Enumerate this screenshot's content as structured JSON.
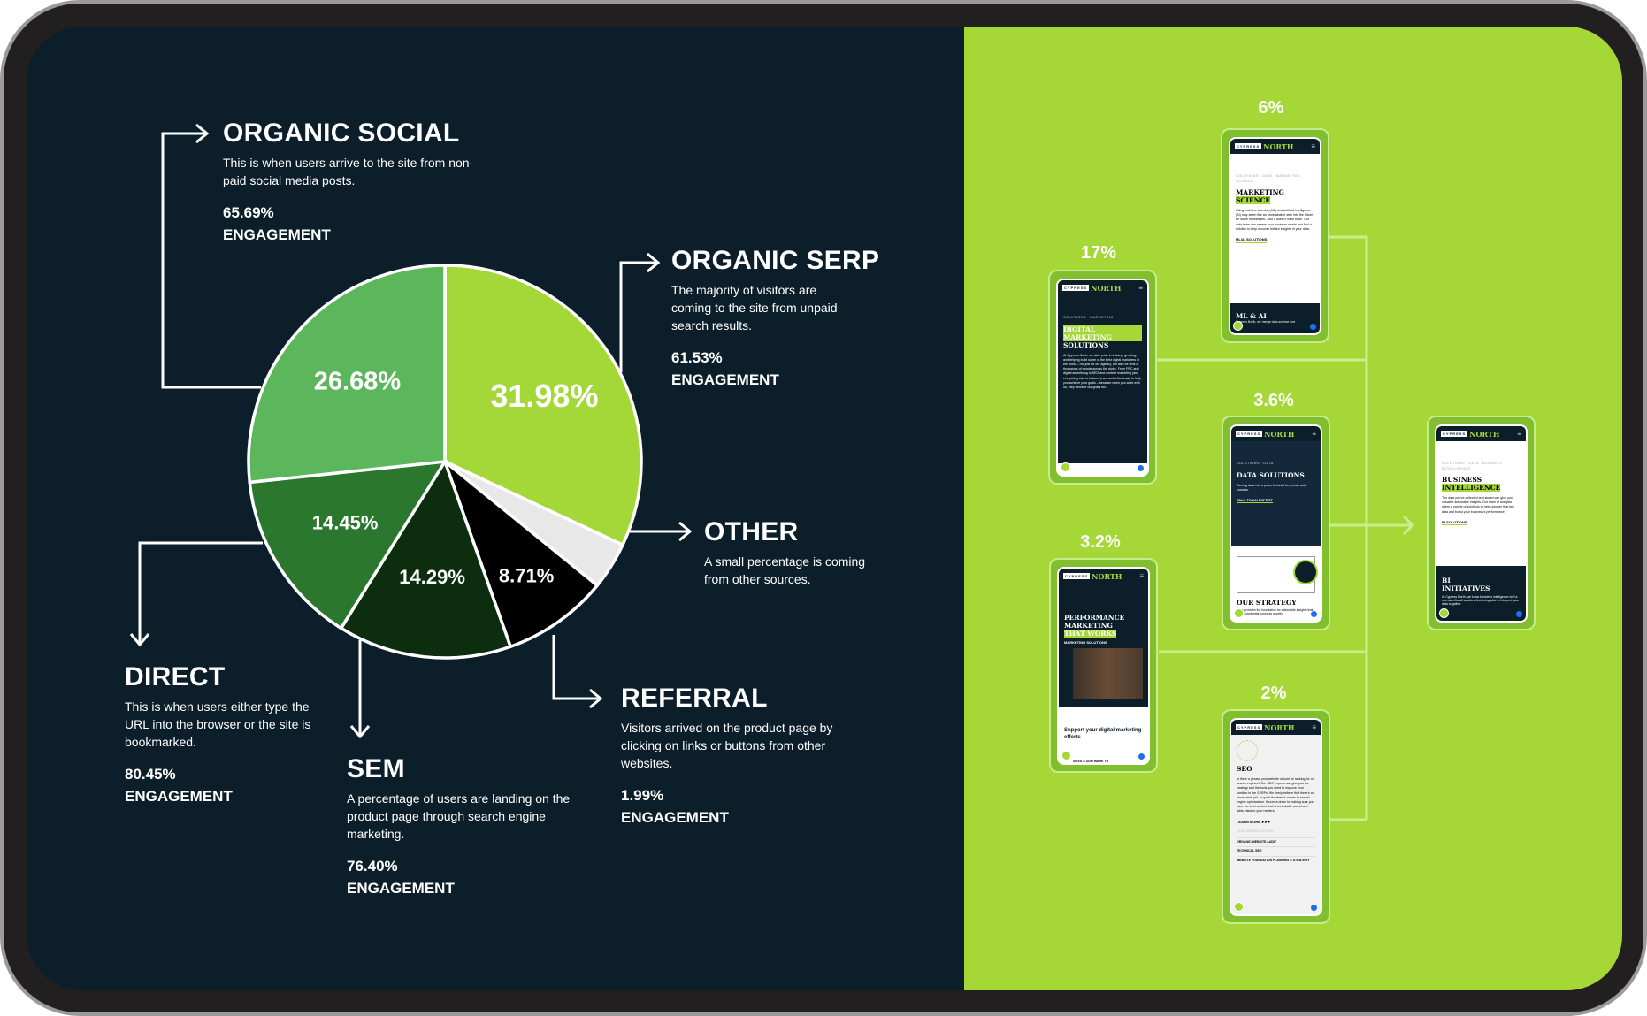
{
  "colors": {
    "background": "#0b1e2a",
    "accent": "#a5d836",
    "frame": "#221f20"
  },
  "segments": {
    "organic_social": {
      "title": "ORGANIC SOCIAL",
      "desc": "This is when users arrive to the site from non-paid social media posts.",
      "engagement_value": "65.69%",
      "engagement_label": "ENGAGEMENT"
    },
    "organic_serp": {
      "title": "ORGANIC SERP",
      "desc": "The majority of visitors are coming to the site from unpaid search results.",
      "engagement_value": "61.53%",
      "engagement_label": "ENGAGEMENT"
    },
    "other": {
      "title": "OTHER",
      "desc": "A small percentage is coming from other sources."
    },
    "referral": {
      "title": "REFERRAL",
      "desc": "Visitors arrived on the product page by clicking on links or buttons from other websites.",
      "engagement_value": "1.99%",
      "engagement_label": "ENGAGEMENT"
    },
    "sem": {
      "title": "SEM",
      "desc": "A percentage of users are landing on the product page through search engine marketing.",
      "engagement_value": "76.40%",
      "engagement_label": "ENGAGEMENT"
    },
    "direct": {
      "title": "DIRECT",
      "desc": "This is when users either type the URL into the browser or the site is bookmarked.",
      "engagement_value": "80.45%",
      "engagement_label": "ENGAGEMENT"
    }
  },
  "chart_data": {
    "type": "pie",
    "start": "top",
    "direction": "clockwise",
    "slices": [
      {
        "name": "ORGANIC SERP",
        "value": 31.98,
        "label": "31.98%",
        "color": "#a3d838"
      },
      {
        "name": "OTHER",
        "value": 3.89,
        "label": "",
        "color": "#e8e8e8"
      },
      {
        "name": "REFERRAL",
        "value": 8.71,
        "label": "8.71%",
        "color": "#000000"
      },
      {
        "name": "SEM",
        "value": 14.29,
        "label": "14.29%",
        "color": "#0c2e0f"
      },
      {
        "name": "DIRECT",
        "value": 14.45,
        "label": "14.45%",
        "color": "#2b772d"
      },
      {
        "name": "ORGANIC SOCIAL",
        "value": 26.68,
        "label": "26.68%",
        "color": "#5cb65b"
      }
    ]
  },
  "brand": {
    "cypress": "CYPRESS",
    "north": "NORTH",
    "menu": "≡"
  },
  "phones": {
    "ms": {
      "pct": "6%",
      "bc": "SOLUTIONS · DATA · MARKETING SCIENCE",
      "t1": "MARKETING",
      "t2": "SCIENCE",
      "body": "Using machine learning (ML) and artificial intelligence (AI) may seem like an unobtainable step into the future for some businesses... but it doesn't have to be. Our data team can assess your business needs and find a solution to help uncover hidden insights in your data.",
      "link": "ML/AI SOLUTIONS",
      "ft": "ML & AI",
      "fx": "Cypress North, we merge data science and"
    },
    "dm": {
      "pct": "17%",
      "bc": "SOLUTIONS · MARKETING",
      "t1": "DIGITAL MARKETING",
      "t2": "SOLUTIONS",
      "body": "At Cypress North, we take pride in training, growing, and helping build some of the best digital marketers in the world – not just for our agency, but also for tens of thousands of people across the globe. From PPC and digital advertising to SEO and content marketing (and everything else in between) we work effortlessly to help you achieve your goals – because when you work with us, they become our goals too."
    },
    "ds": {
      "pct": "3.6%",
      "bc": "SOLUTIONS · DATA",
      "t1": "DATA SOLUTIONS",
      "body": "Turning data into a powerful asset for growth and success.",
      "link": "TALK TO AN EXPERT",
      "ft": "OUR STRATEGY",
      "fx": "Data provides the foundation for actionable insights that drive substantial business growth."
    },
    "pm": {
      "pct": "3.2%",
      "t1": "PERFORMANCE MARKETING",
      "t2": "THAT WORKS",
      "bc": "MARKETING SOLUTIONS",
      "sub": "Support your digital marketing efforts",
      "fx": "SITES & SOFTWARE TO"
    },
    "seo": {
      "pct": "2%",
      "t1": "SEO",
      "body": "Is there a phrase your website should be ranking for on search engines? Our SEO experts can give you the strategy and the tools you need to improve your position in the SERPs. We firmly believe that there's no secret trick, pill, or quick fix when it comes to search engine optimization. It comes down to making sure you have the best content that is technically sound and adds value to your readers.",
      "link": "LEARN MORE ➤➤➤",
      "cs": "CUSTOM SOLUTIONS",
      "items": [
        "ORGANIC WEBSITE AUDIT",
        "TECHNICAL SEO",
        "WEBSITE FOUNDATION PLANNING & STRATEGY"
      ]
    },
    "bi": {
      "bc": "SOLUTIONS · DATA · BUSINESS INTELLIGENCE",
      "t1": "BUSINESS",
      "t2": "INTELLIGENCE",
      "body": "The data you've collected and stored can give you valuable actionable insights. Our team of analysts offers a variety of solutions to help uncover that key data and boost your business's performance.",
      "link": "BI SOLUTIONS",
      "ft": "BI INITIATIVES",
      "fx": "At Cypress North, we know business intelligence isn't a one-size-fits-all solution. And being able to interpret your data to gather"
    }
  }
}
